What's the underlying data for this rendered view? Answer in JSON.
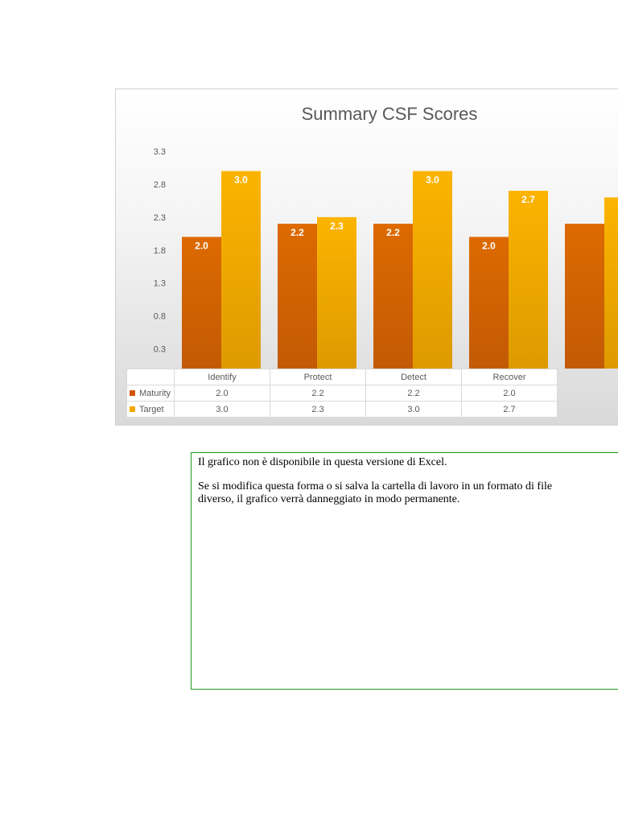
{
  "chart_data": {
    "type": "bar",
    "title": "Summary CSF Scores",
    "categories": [
      "Identify",
      "Protect",
      "Detect",
      "Recover"
    ],
    "series": [
      {
        "name": "Maturity",
        "values": [
          2.0,
          2.2,
          2.2,
          2.0
        ],
        "labels": [
          "2.0",
          "2.2",
          "2.2",
          "2.0"
        ],
        "color": "#d35400"
      },
      {
        "name": "Target",
        "values": [
          3.0,
          2.3,
          3.0,
          2.7
        ],
        "labels": [
          "3.0",
          "2.3",
          "3.0",
          "2.7"
        ],
        "color": "#f5a800"
      }
    ],
    "partial_bars": {
      "maturity": 2.2,
      "target": 2.6
    },
    "y_ticks": [
      "3.3",
      "2.8",
      "2.3",
      "1.8",
      "1.3",
      "0.8",
      "0.3"
    ],
    "y_tick_values": [
      3.3,
      2.8,
      2.3,
      1.8,
      1.3,
      0.8,
      0.3
    ],
    "ylim": [
      0.0,
      3.3
    ],
    "xlabel": "",
    "ylabel": "",
    "data_table": true
  },
  "table": {
    "rows": [
      {
        "name": "Maturity",
        "values": [
          "2.0",
          "2.2",
          "2.2",
          "2.0"
        ]
      },
      {
        "name": "Target",
        "values": [
          "3.0",
          "2.3",
          "3.0",
          "2.7"
        ]
      }
    ]
  },
  "warning": {
    "line1": "Il grafico non è disponibile in questa versione di Excel.",
    "line2": "Se si modifica questa forma o si salva la cartella di lavoro in un formato di file diverso, il grafico verrà danneggiato in modo permanente."
  },
  "colors": {
    "maturity": "#d35400",
    "target": "#f5a800",
    "border": "#1f9a1f"
  }
}
